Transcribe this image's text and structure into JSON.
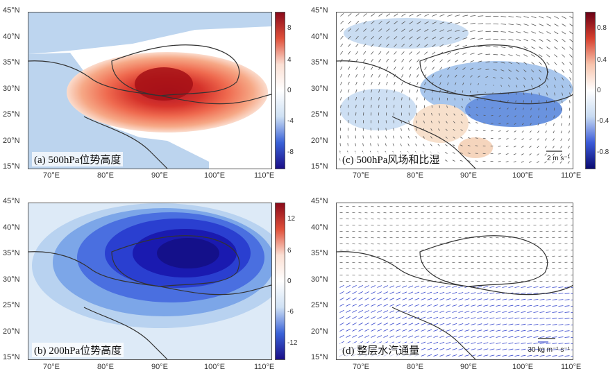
{
  "panels": {
    "a": {
      "label": "(a) 500hPa位势高度",
      "colorbar": [
        "8",
        "4",
        "0",
        "-4",
        "-8"
      ]
    },
    "b": {
      "label": "(b) 200hPa位势高度",
      "colorbar": [
        "12",
        "6",
        "0",
        "-6",
        "-12"
      ]
    },
    "c": {
      "label": "(c) 500hPa风场和比湿",
      "colorbar": [
        "0.8",
        "0.4",
        "0",
        "-0.4",
        "-0.8"
      ],
      "ref_vector": "2 m s⁻¹"
    },
    "d": {
      "label": "(d) 整层水汽通量",
      "ref_vector": "30 kg m⁻¹ s⁻¹"
    }
  },
  "colors": {
    "positive": "#b2182b",
    "negative": "#1a1aa6",
    "coast": "#333333",
    "vector": "#555555",
    "vector_blue": "#3344cc"
  },
  "chart_data": [
    {
      "type": "heatmap",
      "panel": "a",
      "title": "(a) 500hPa位势高度",
      "x_ticks": [
        "70°E",
        "80°E",
        "90°E",
        "100°E",
        "110°E"
      ],
      "y_ticks": [
        "45°N",
        "40°N",
        "35°N",
        "30°N",
        "25°N",
        "20°N",
        "15°N"
      ],
      "xlim": [
        65,
        110
      ],
      "ylim": [
        15,
        45
      ],
      "colorbar_range": [
        -10,
        10
      ],
      "feature": {
        "max_center_lon": 89,
        "max_center_lat": 31.5,
        "max_value": 8
      }
    },
    {
      "type": "heatmap",
      "panel": "b",
      "title": "(b) 200hPa位势高度",
      "x_ticks": [
        "70°E",
        "80°E",
        "90°E",
        "100°E",
        "110°E"
      ],
      "y_ticks": [
        "45°N",
        "40°N",
        "35°N",
        "30°N",
        "25°N",
        "20°N",
        "15°N"
      ],
      "xlim": [
        65,
        110
      ],
      "ylim": [
        15,
        45
      ],
      "colorbar_range": [
        -14,
        14
      ],
      "feature": {
        "min_center_lon": 96,
        "min_center_lat": 35,
        "min_value": -14
      }
    },
    {
      "type": "heatmap",
      "panel": "c",
      "title": "(c) 500hPa风场和比湿",
      "x_ticks": [
        "70°E",
        "80°E",
        "90°E",
        "100°E",
        "110°E"
      ],
      "y_ticks": [
        "45°N",
        "40°N",
        "35°N",
        "30°N",
        "25°N",
        "20°N",
        "15°N"
      ],
      "xlim": [
        65,
        110
      ],
      "ylim": [
        15,
        45
      ],
      "colorbar_range": [
        -1,
        1
      ]
    },
    {
      "type": "scatter",
      "panel": "d",
      "title": "(d) 整层水汽通量",
      "x_ticks": [
        "70°E",
        "80°E",
        "90°E",
        "100°E",
        "110°E"
      ],
      "y_ticks": [
        "45°N",
        "40°N",
        "35°N",
        "30°N",
        "25°N",
        "20°N",
        "15°N"
      ],
      "xlim": [
        65,
        110
      ],
      "ylim": [
        15,
        45
      ]
    }
  ]
}
